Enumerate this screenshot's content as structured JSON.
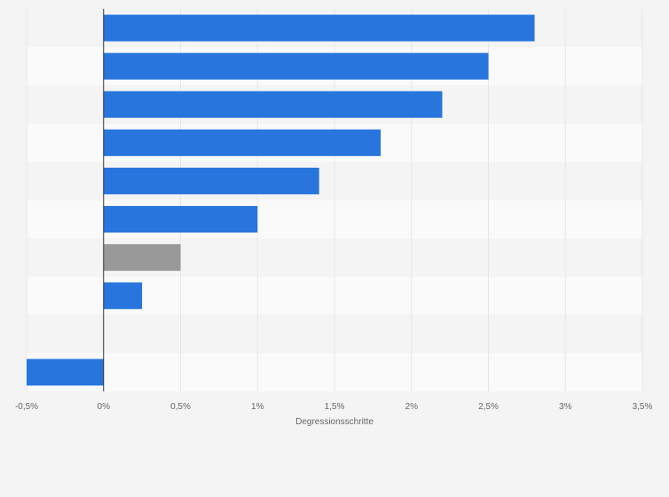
{
  "chart_data": {
    "type": "bar",
    "orientation": "horizontal",
    "title": "",
    "xlabel": "Degressionsschritte",
    "ylabel": "",
    "xlim": [
      -0.5,
      3.5
    ],
    "grid": true,
    "legend": "none",
    "x_ticks": [
      {
        "value": -0.5,
        "label": "-0,5%"
      },
      {
        "value": 0,
        "label": "0%"
      },
      {
        "value": 0.5,
        "label": "0,5%"
      },
      {
        "value": 1,
        "label": "1%"
      },
      {
        "value": 1.5,
        "label": "1,5%"
      },
      {
        "value": 2,
        "label": "2%"
      },
      {
        "value": 2.5,
        "label": "2,5%"
      },
      {
        "value": 3,
        "label": "3%"
      },
      {
        "value": 3.5,
        "label": "3,5%"
      }
    ],
    "categories": [
      "",
      "",
      "",
      "",
      "",
      "",
      "",
      "",
      "",
      ""
    ],
    "values": [
      2.8,
      2.5,
      2.2,
      1.8,
      1.4,
      1.0,
      0.5,
      0.25,
      null,
      -0.5
    ],
    "bar_colors": [
      "#2876dd",
      "#2876dd",
      "#2876dd",
      "#2876dd",
      "#2876dd",
      "#2876dd",
      "#999999",
      "#2876dd",
      "#2876dd",
      "#2876dd"
    ],
    "colors": {
      "primary": "#2876dd",
      "highlight": "#999999",
      "band_light": "#fafafa",
      "band_dark": "#f4f4f4",
      "grid": "#e6e6e6",
      "zero_line": "#333333"
    }
  }
}
